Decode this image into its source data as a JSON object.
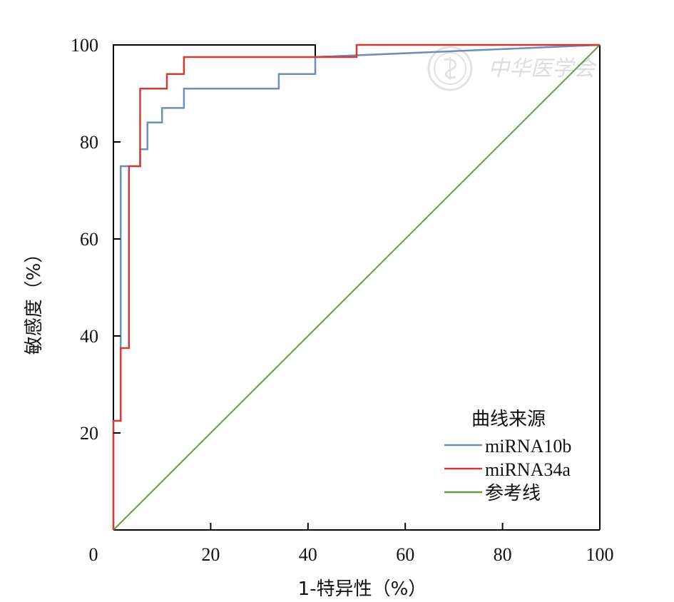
{
  "watermark": {
    "text": "中华医学会",
    "logo": "society-seal"
  },
  "chart_data": {
    "type": "line",
    "xlabel": "1-特异性（%）",
    "ylabel": "敏感度（%）",
    "xlim": [
      0,
      100
    ],
    "ylim": [
      0,
      100
    ],
    "x_ticks": [
      0,
      20,
      40,
      60,
      80,
      100
    ],
    "y_ticks": [
      20,
      40,
      60,
      80,
      100
    ],
    "grid": false,
    "legend": {
      "title": "曲线来源",
      "position": "bottom-right"
    },
    "series": [
      {
        "name": "miRNA10b",
        "color": "#6c8ebf",
        "x": [
          0,
          0,
          1.5,
          1.5,
          5.5,
          5.5,
          7,
          7,
          10,
          10,
          14.5,
          14.5,
          34,
          34,
          41.5,
          41.5,
          100
        ],
        "y": [
          0,
          22.5,
          22.5,
          75,
          75,
          78.5,
          78.5,
          84,
          84,
          87,
          87,
          91,
          91,
          94,
          94,
          97.5,
          100
        ]
      },
      {
        "name": "miRNA34a",
        "color": "#d63a33",
        "x": [
          0,
          0,
          1.5,
          1.5,
          3.2,
          3.2,
          5.5,
          5.5,
          11,
          11,
          14.5,
          14.5,
          50,
          50,
          100
        ],
        "y": [
          0,
          22.5,
          22.5,
          37.5,
          37.5,
          75,
          75,
          91,
          91,
          94,
          94,
          97.5,
          97.5,
          100,
          100
        ]
      },
      {
        "name": "参考线",
        "color": "#6c9a43",
        "x": [
          0,
          100
        ],
        "y": [
          0,
          100
        ]
      }
    ],
    "envelope": {
      "color": "#000000",
      "x": [
        0,
        0,
        41.5,
        41.5
      ],
      "y": [
        75,
        100,
        100,
        97.5
      ]
    }
  }
}
